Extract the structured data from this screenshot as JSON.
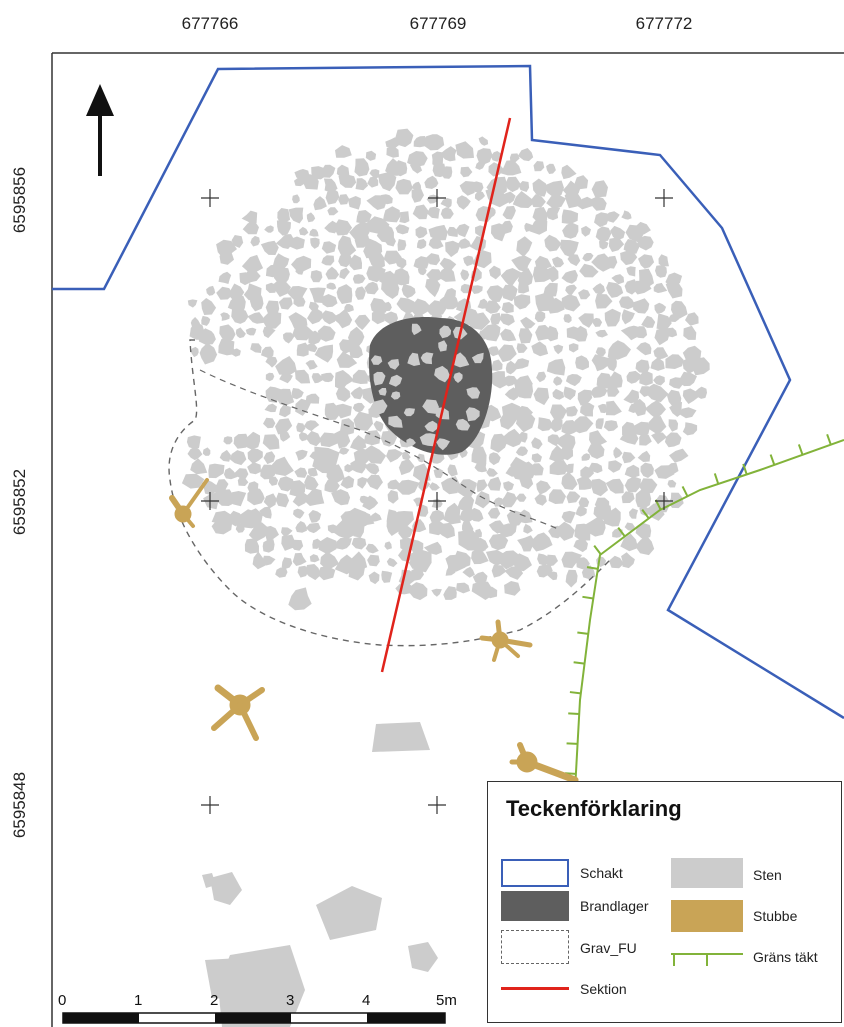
{
  "map": {
    "x_ticks": [
      "677766",
      "677769",
      "677772"
    ],
    "y_ticks": [
      "6595856",
      "6595852",
      "6595848"
    ],
    "north_arrow_icon": "north-arrow-icon"
  },
  "legend": {
    "title": "Teckenförklaring",
    "items": {
      "schakt": "Schakt",
      "brandlager": "Brandlager",
      "grav_fu": "Grav_FU",
      "sektion": "Sektion",
      "sten": "Sten",
      "stubbe": "Stubbe",
      "grans_takt": "Gräns täkt"
    }
  },
  "scalebar": {
    "labels": [
      "0",
      "1",
      "2",
      "3",
      "4",
      "5m"
    ]
  },
  "colors": {
    "schakt": "#3a5fb8",
    "brandlager": "#5e5e5e",
    "grav_fu": "#666666",
    "sektion": "#e0231b",
    "sten": "#cccccc",
    "stubbe": "#c9a456",
    "grans_takt": "#82b33a"
  }
}
